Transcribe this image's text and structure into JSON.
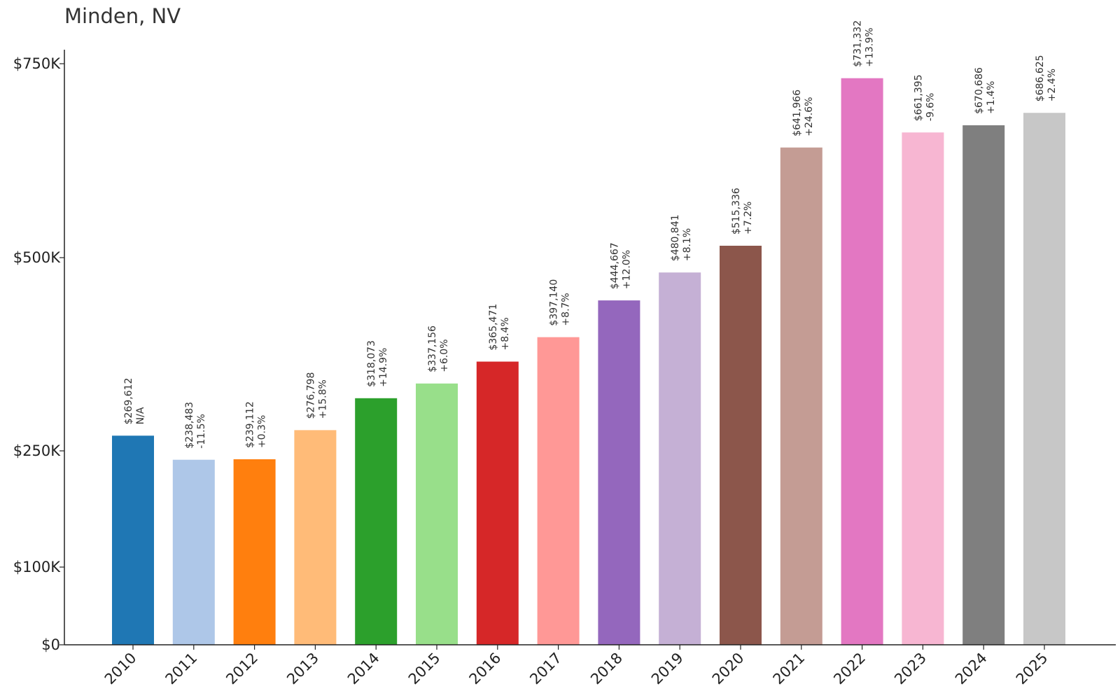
{
  "chart_data": {
    "type": "bar",
    "title": "Minden, NV",
    "xlabel": "",
    "ylabel": "",
    "categories": [
      "2010",
      "2011",
      "2012",
      "2013",
      "2014",
      "2015",
      "2016",
      "2017",
      "2018",
      "2019",
      "2020",
      "2021",
      "2022",
      "2023",
      "2024",
      "2025"
    ],
    "values": [
      269612,
      238483,
      239112,
      276798,
      318073,
      337156,
      365471,
      397140,
      444667,
      480841,
      515336,
      641966,
      731332,
      661395,
      670686,
      686625
    ],
    "value_labels": [
      "$269,612",
      "$238,483",
      "$239,112",
      "$276,798",
      "$318,073",
      "$337,156",
      "$365,471",
      "$397,140",
      "$444,667",
      "$480,841",
      "$515,336",
      "$641,966",
      "$731,332",
      "$661,395",
      "$670,686",
      "$686,625"
    ],
    "change_labels": [
      "N/A",
      "-11.5%",
      "+0.3%",
      "+15.8%",
      "+14.9%",
      "+6.0%",
      "+8.4%",
      "+8.7%",
      "+12.0%",
      "+8.1%",
      "+7.2%",
      "+24.6%",
      "+13.9%",
      "-9.6%",
      "+1.4%",
      "+2.4%"
    ],
    "colors": [
      "#1f77b4",
      "#aec7e8",
      "#ff7f0e",
      "#ffbb78",
      "#2ca02c",
      "#98df8a",
      "#d62728",
      "#ff9896",
      "#9467bd",
      "#c5b0d5",
      "#8c564b",
      "#c49c94",
      "#e377c2",
      "#f7b6d2",
      "#7f7f7f",
      "#c7c7c7"
    ],
    "yticks": [
      0,
      100000,
      250000,
      500000,
      750000
    ],
    "ytick_labels": [
      "$0",
      "$100K",
      "$250K",
      "$500K",
      "$750K"
    ],
    "ylim": [
      0,
      750000
    ],
    "grid": false,
    "legend": "none"
  }
}
